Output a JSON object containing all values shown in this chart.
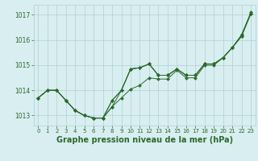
{
  "background_color": "#d8eef0",
  "grid_color": "#b0d0d4",
  "line_color": "#2d6a2d",
  "marker_color": "#2d6a2d",
  "xlabel": "Graphe pression niveau de la mer (hPa)",
  "xlabel_fontsize": 7,
  "ylim": [
    1012.6,
    1017.4
  ],
  "yticks": [
    1013,
    1014,
    1015,
    1016,
    1017
  ],
  "xticks": [
    0,
    1,
    2,
    3,
    4,
    5,
    6,
    7,
    8,
    9,
    10,
    11,
    12,
    13,
    14,
    15,
    16,
    17,
    18,
    19,
    20,
    21,
    22,
    23
  ],
  "series": [
    [
      1013.7,
      1014.0,
      1014.0,
      1013.6,
      1013.2,
      1013.0,
      1012.9,
      1012.9,
      1013.35,
      1013.7,
      1014.05,
      1014.2,
      1014.5,
      1014.45,
      1014.45,
      1014.8,
      1014.5,
      1014.5,
      1015.0,
      1015.0,
      1015.3,
      1015.7,
      1016.15,
      1017.05
    ],
    [
      1013.7,
      1014.0,
      1014.0,
      1013.6,
      1013.2,
      1013.0,
      1012.9,
      1012.9,
      1013.35,
      1014.0,
      1014.85,
      1014.9,
      1015.05,
      1014.6,
      1014.6,
      1014.85,
      1014.6,
      1014.6,
      1015.05,
      1015.05,
      1015.3,
      1015.7,
      1016.15,
      1017.05
    ],
    [
      1013.7,
      1014.0,
      1014.0,
      1013.6,
      1013.2,
      1013.0,
      1012.9,
      1012.9,
      1013.6,
      1014.0,
      1014.85,
      1014.9,
      1015.05,
      1014.6,
      1014.6,
      1014.85,
      1014.6,
      1014.6,
      1015.05,
      1015.05,
      1015.3,
      1015.7,
      1016.2,
      1017.05
    ],
    [
      1013.7,
      1014.0,
      1014.0,
      1013.6,
      1013.2,
      1013.0,
      1012.9,
      1012.9,
      1013.6,
      1014.0,
      1014.85,
      1014.9,
      1015.05,
      1014.6,
      1014.6,
      1014.85,
      1014.6,
      1014.6,
      1015.05,
      1015.05,
      1015.3,
      1015.7,
      1016.2,
      1017.1
    ]
  ]
}
